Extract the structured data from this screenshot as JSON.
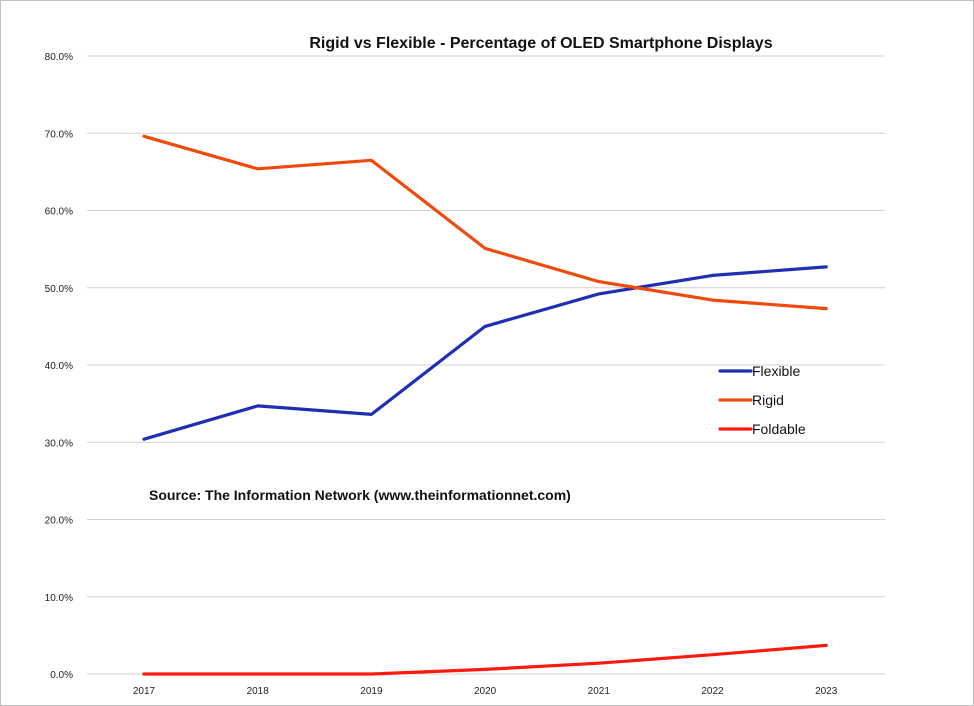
{
  "chart_data": {
    "type": "line",
    "title": "Rigid vs Flexible - Percentage of OLED Smartphone Displays",
    "annotation": "Source: The Information Network (www.theinformationnet.com)",
    "xlabel": "",
    "ylabel": "",
    "categories": [
      "2017",
      "2018",
      "2019",
      "2020",
      "2021",
      "2022",
      "2023"
    ],
    "ylim": [
      0,
      80
    ],
    "yticks": [
      "0.0%",
      "10.0%",
      "20.0%",
      "30.0%",
      "40.0%",
      "50.0%",
      "60.0%",
      "70.0%",
      "80.0%"
    ],
    "grid": true,
    "legend_position": "right",
    "series": [
      {
        "name": "Flexible",
        "color": "#1f2fb5",
        "values": [
          30.4,
          34.7,
          33.6,
          45.0,
          49.2,
          51.6,
          52.7
        ]
      },
      {
        "name": "Rigid",
        "color": "#f04a0d",
        "values": [
          69.6,
          65.4,
          66.5,
          55.1,
          50.8,
          48.4,
          47.3
        ]
      },
      {
        "name": "Foldable",
        "color": "#ff1a10",
        "values": [
          0.0,
          0.0,
          0.0,
          0.6,
          1.4,
          2.5,
          3.7
        ]
      }
    ]
  }
}
